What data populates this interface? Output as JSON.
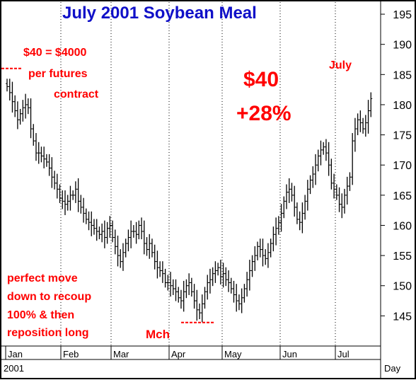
{
  "chart_data": {
    "type": "bar",
    "subtype": "ohlc-daily",
    "title": "July 2001 Soybean Meal",
    "title_color": "#1010c8",
    "bar_color": "#000000",
    "annotation_color": "#ff0000",
    "grid": "vertical dotted lines at month boundaries",
    "y_axis_side": "right",
    "ylim": [
      140,
      197
    ],
    "y_ticks": [
      145,
      150,
      155,
      160,
      165,
      170,
      175,
      180,
      185,
      190,
      195
    ],
    "x_month_labels": [
      "Jan",
      "Feb",
      "Mar",
      "Apr",
      "May",
      "Jun",
      "Jul"
    ],
    "x_year_label": "2001",
    "x_period_label": "Day",
    "days_per_month": [
      21,
      19,
      22,
      20,
      22,
      21,
      14
    ],
    "series": [
      {
        "closes": [
          183,
          182,
          180.5,
          179,
          177.5,
          178.5,
          179.5,
          180,
          179.5,
          176,
          174,
          172,
          172,
          171.5,
          171,
          170.5,
          169.5,
          168,
          167,
          166,
          164.5,
          164,
          163.5,
          164,
          165,
          165,
          166,
          164,
          163,
          162,
          161,
          160.5,
          160,
          159.5,
          159,
          158.5,
          159,
          158,
          159.5,
          160,
          158,
          156.5,
          155,
          154,
          155.5,
          157,
          158,
          159,
          159,
          158.5,
          160,
          159,
          157,
          156,
          157,
          155.5,
          154,
          153,
          152.5,
          152,
          150.5,
          150.5,
          150,
          149.5,
          149,
          148,
          147.5,
          149,
          150,
          150.5,
          149,
          147.5,
          146,
          145.5,
          147,
          149,
          150.5,
          151,
          152,
          152.5,
          153,
          151.5,
          152,
          151,
          150.5,
          149.5,
          148.5,
          147.5,
          147,
          148,
          149.5,
          151,
          152.5,
          154,
          155,
          156.5,
          156,
          155,
          154.5,
          155.5,
          157,
          158.5,
          159.5,
          160.5,
          162,
          164,
          165.5,
          166,
          165,
          163,
          161,
          160.5,
          162,
          164,
          166,
          167.5,
          168.5,
          170,
          171.5,
          172.5,
          173,
          172,
          170,
          167,
          166,
          165,
          163.5,
          163,
          165,
          166.5,
          168,
          174,
          176,
          177.5,
          177,
          176,
          177,
          179,
          181
        ]
      }
    ],
    "annotations": {
      "lot_value": [
        "$40 = $4000",
        "per futures",
        "contract"
      ],
      "gain_dollars": "$40",
      "gain_percent": "+28%",
      "strategy": [
        "perfect move",
        "down to recoup",
        "100% & then",
        "reposition long"
      ],
      "low_marker": "Mch",
      "high_marker": "July"
    }
  }
}
